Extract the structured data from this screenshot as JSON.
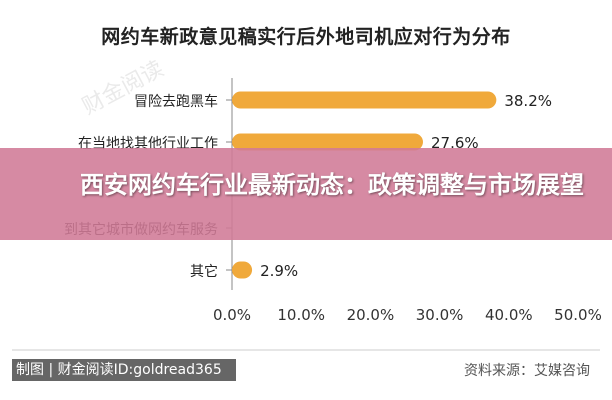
{
  "chart_data": {
    "type": "bar",
    "orientation": "horizontal",
    "title": "网约车新政意见稿实行后外地司机应对行为分布",
    "categories": [
      "冒险去跑黑车",
      "在当地找其他行业工作",
      "",
      "到其它城市做网约车服务",
      "其它"
    ],
    "values": [
      38.2,
      27.6,
      null,
      null,
      2.9
    ],
    "value_labels": [
      "38.2%",
      "27.6%",
      "",
      "",
      "2.9%"
    ],
    "xlim": [
      0,
      50
    ],
    "xticks": [
      "0.0%",
      "10.0%",
      "20.0%",
      "30.0%",
      "40.0%",
      "50.0%"
    ],
    "grid": false,
    "bar_color": "#f0a93b"
  },
  "overlay": {
    "headline": "西安网约车行业最新动态：政策调整与市场展望",
    "color": "#d07a96"
  },
  "watermark_text": "制图 | 财金阅读ID:goldread365",
  "faint_watermark": "财金阅读",
  "source_text": "资料来源：艾媒咨询"
}
